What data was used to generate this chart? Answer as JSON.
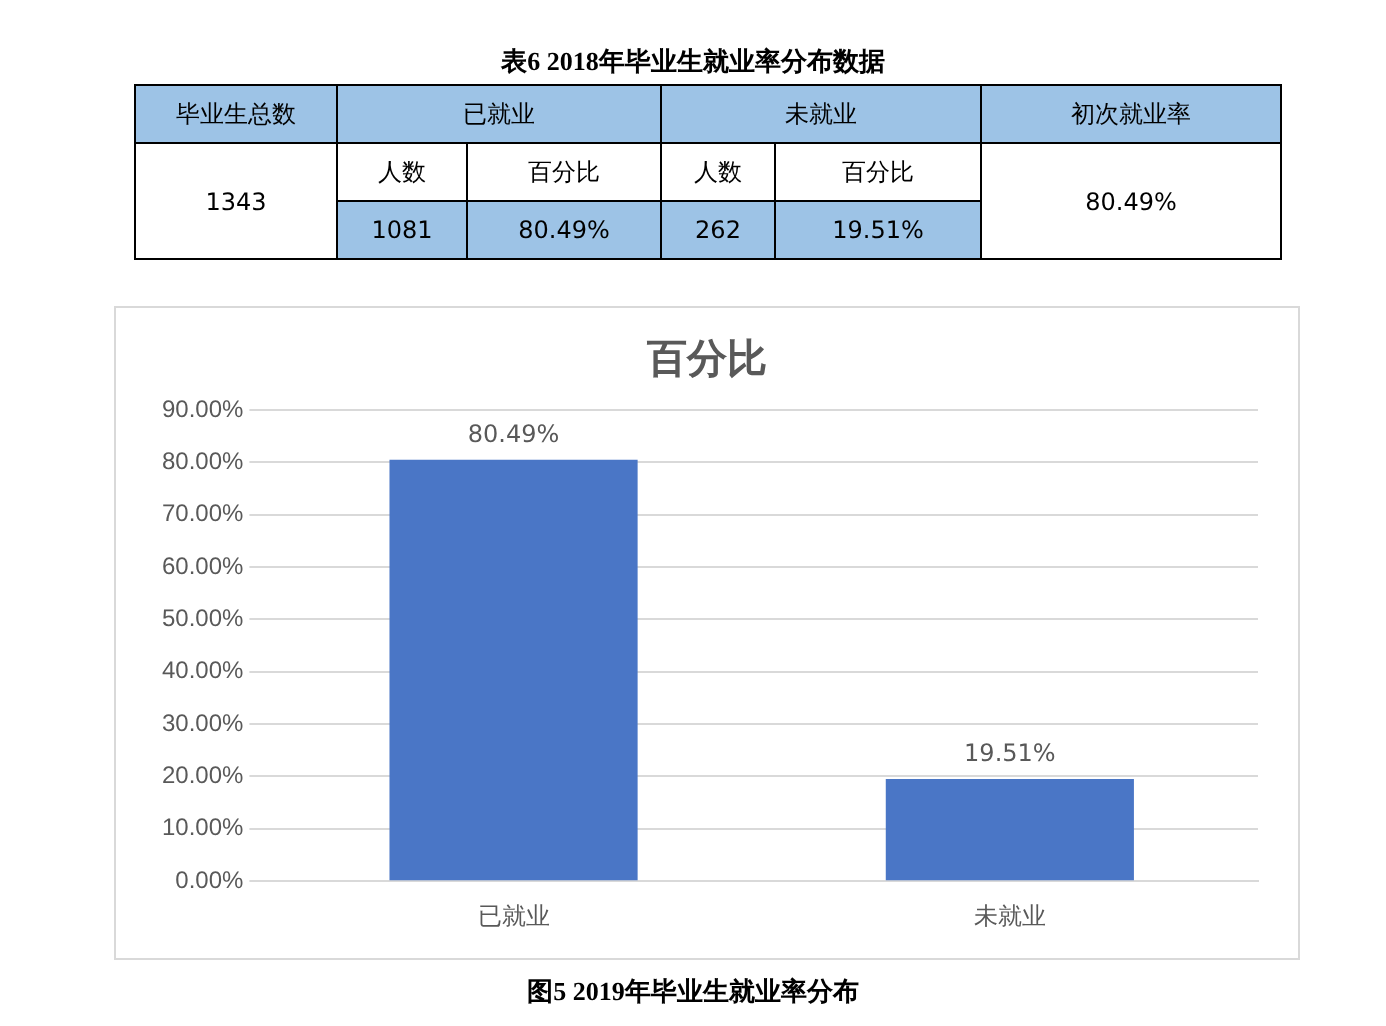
{
  "chart_data": [
    {
      "type": "other",
      "title": "表6   2018年毕业生就业率分布数据",
      "annotations": [
        "毕业生总数",
        "已就业",
        "未就业",
        "初次就业率",
        "1343",
        "人数",
        "百分比",
        "人数",
        "百分比",
        "80.49%",
        "1081",
        "80.49%",
        "262",
        "19.51%"
      ]
    },
    {
      "type": "bar",
      "title": "百分比",
      "categories": [
        "已就业",
        "未就业"
      ],
      "values": [
        80.49,
        19.51
      ],
      "value_labels": [
        "80.49%",
        "19.51%"
      ],
      "color": "#4a76c6",
      "ylim": [
        0,
        90
      ],
      "yticks": [
        {
          "value": 0,
          "label": "0.00%"
        },
        {
          "value": 10,
          "label": "10.00%"
        },
        {
          "value": 20,
          "label": "20.00%"
        },
        {
          "value": 30,
          "label": "30.00%"
        },
        {
          "value": 40,
          "label": "40.00%"
        },
        {
          "value": 50,
          "label": "50.00%"
        },
        {
          "value": 60,
          "label": "60.00%"
        },
        {
          "value": 70,
          "label": "70.00%"
        },
        {
          "value": 80,
          "label": "80.00%"
        },
        {
          "value": 90,
          "label": "90.00%"
        }
      ],
      "grid": "y",
      "annotations": [
        "图5   2019年毕业生就业率分布"
      ]
    }
  ]
}
